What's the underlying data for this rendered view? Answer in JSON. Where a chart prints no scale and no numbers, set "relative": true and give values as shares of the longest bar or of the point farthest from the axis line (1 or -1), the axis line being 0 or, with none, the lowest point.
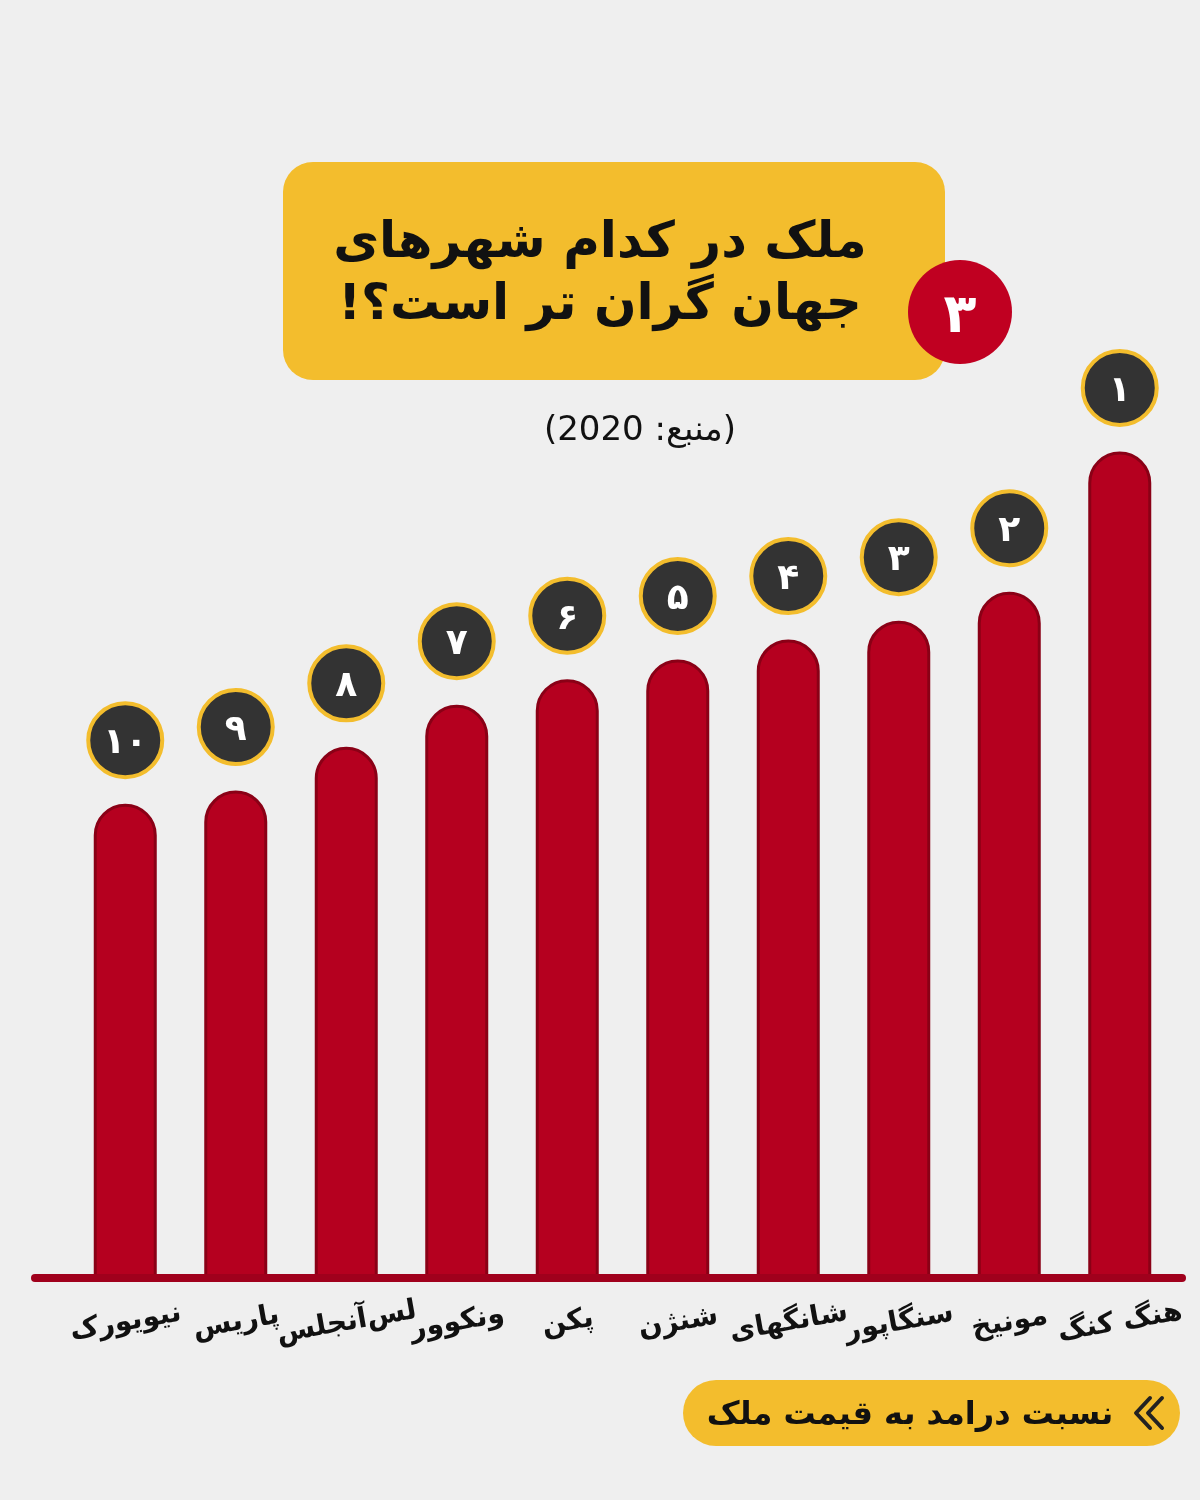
{
  "chart_data": {
    "type": "bar",
    "relative": true,
    "title": "ملک در کدام شهرهای جهان گران تر است؟!",
    "categories": [
      "نیویورک",
      "پاریس",
      "لس‌آنجلس",
      "ونکوور",
      "پکن",
      "شنژن",
      "شانگهای",
      "سنگاپور",
      "مونیخ",
      "هنگ کنگ"
    ],
    "values": [
      0.573,
      0.589,
      0.642,
      0.693,
      0.724,
      0.748,
      0.772,
      0.795,
      0.83,
      1
    ],
    "color": "#b5001f",
    "annotations": [
      "۳",
      "(منبع: 2020)",
      "نسبت درامد به قیمت ملک",
      {
        "text": "۱۰",
        "x": "نیویورک",
        "y": 0.573
      },
      {
        "text": "۹",
        "x": "پاریس",
        "y": 0.589
      },
      {
        "text": "۸",
        "x": "لس‌آنجلس",
        "y": 0.642
      },
      {
        "text": "۷",
        "x": "ونکوور",
        "y": 0.693
      },
      {
        "text": "۶",
        "x": "پکن",
        "y": 0.724
      },
      {
        "text": "۵",
        "x": "شنژن",
        "y": 0.748
      },
      {
        "text": "۴",
        "x": "شانگهای",
        "y": 0.772
      },
      {
        "text": "۳",
        "x": "سنگاپور",
        "y": 0.795
      },
      {
        "text": "۲",
        "x": "مونیخ",
        "y": 0.83
      },
      {
        "text": "۱",
        "x": "هنگ کنگ",
        "y": 1
      }
    ]
  }
}
